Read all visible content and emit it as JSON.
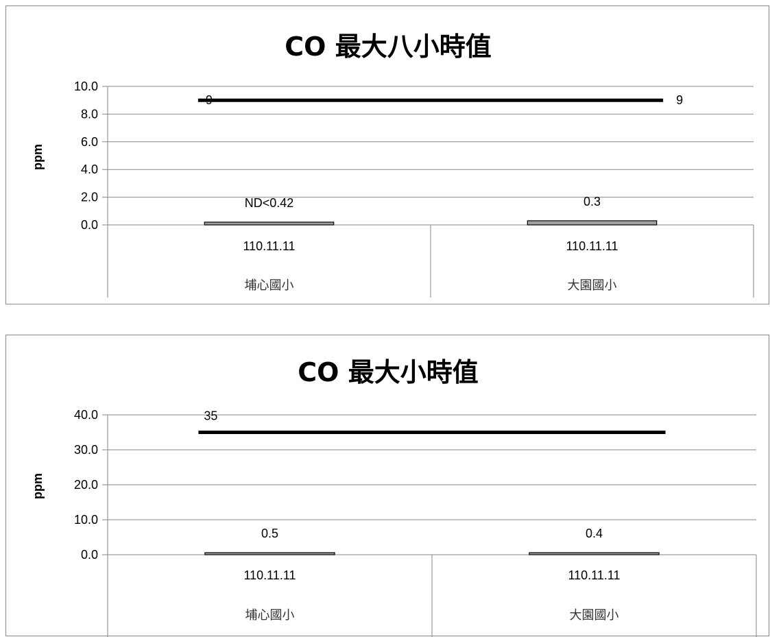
{
  "chart_data": [
    {
      "type": "bar",
      "title": "CO  最大八小時值",
      "ylabel": "ppm",
      "ylim": [
        0,
        10
      ],
      "yticks": [
        "0.0",
        "2.0",
        "4.0",
        "6.0",
        "8.0",
        "10.0"
      ],
      "categories": [
        {
          "date": "110.11.11",
          "site": "埔心國小"
        },
        {
          "date": "110.11.11",
          "site": "大園國小"
        }
      ],
      "series": [
        {
          "values": [
            0.2,
            0.3
          ],
          "labels": [
            "ND<0.42",
            "0.3"
          ],
          "color": "#a0a0a0"
        },
        {
          "type": "line",
          "values": [
            9,
            9
          ],
          "labels": [
            "9",
            "9"
          ],
          "color": "#000000"
        }
      ],
      "grid": true
    },
    {
      "type": "bar",
      "title": "CO  最大小時值",
      "ylabel": "ppm",
      "ylim": [
        0,
        40
      ],
      "yticks": [
        "0.0",
        "10.0",
        "20.0",
        "30.0",
        "40.0"
      ],
      "categories": [
        {
          "date": "110.11.11",
          "site": "埔心國小"
        },
        {
          "date": "110.11.11",
          "site": "大園國小"
        }
      ],
      "series": [
        {
          "values": [
            0.5,
            0.4
          ],
          "labels": [
            "0.5",
            "0.4"
          ],
          "color": "#a0a0a0"
        },
        {
          "type": "line",
          "values": [
            35,
            35
          ],
          "labels": [
            "35"
          ],
          "color": "#000000"
        }
      ],
      "grid": true
    }
  ]
}
